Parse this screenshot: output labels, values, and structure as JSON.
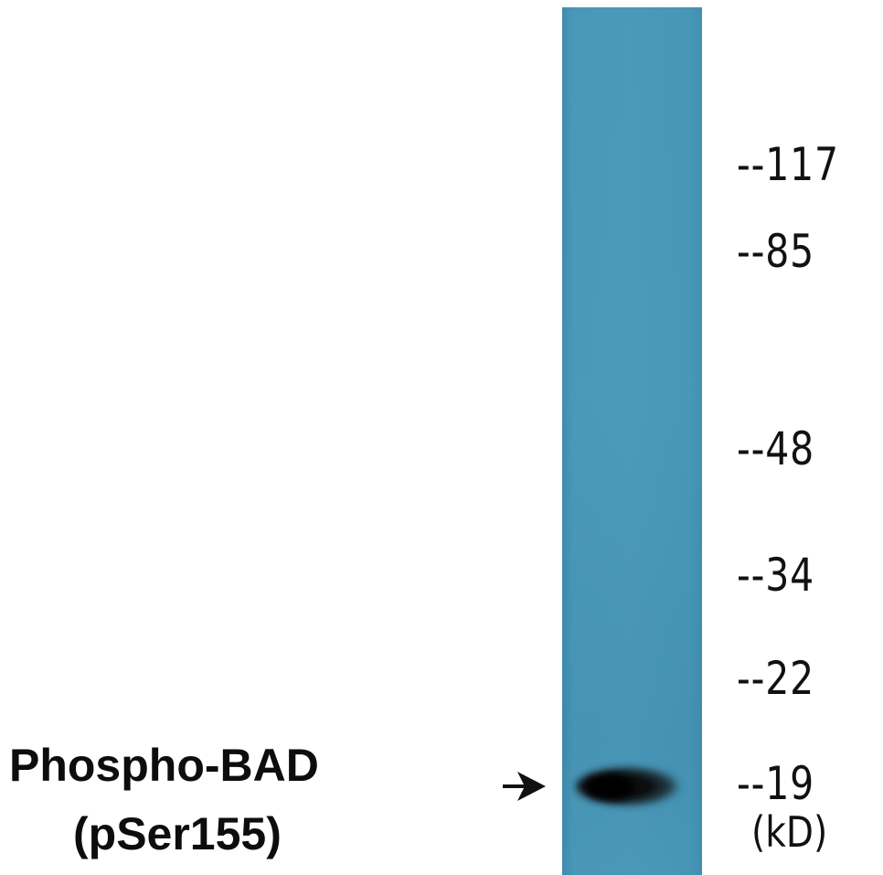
{
  "figure": {
    "lane_color": "#4a97b8",
    "band_color": "#0a0a0a",
    "arrow_icon": "arrow-right-icon",
    "protein_label": {
      "line1": "Phospho-BAD",
      "line2": "(pSer155)"
    },
    "markers": [
      {
        "text": "--117",
        "kd": 117
      },
      {
        "text": "--85",
        "kd": 85
      },
      {
        "text": "--48",
        "kd": 48
      },
      {
        "text": "--34",
        "kd": 34
      },
      {
        "text": "--22",
        "kd": 22
      },
      {
        "text": "--19",
        "kd": 19
      }
    ],
    "unit_label": "(kD)"
  }
}
